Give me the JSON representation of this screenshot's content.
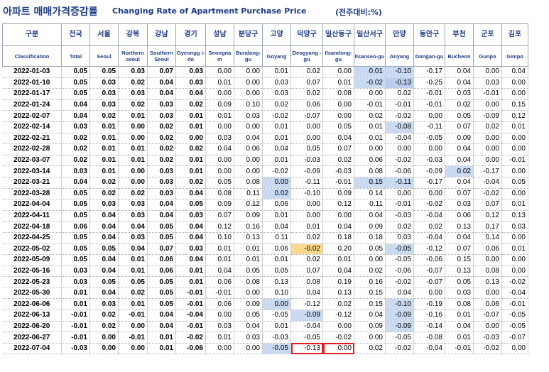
{
  "title": {
    "korean": "아파트 매매가격증감률",
    "english": "Changing Rate of Apartment Purchase Price",
    "unit": "(전주대비:%)"
  },
  "columns": [
    {
      "ko": "구분",
      "en": "Classification"
    },
    {
      "ko": "전국",
      "en": "Total"
    },
    {
      "ko": "서울",
      "en": "Seoul"
    },
    {
      "ko": "강북",
      "en": "Northern seoul"
    },
    {
      "ko": "강남",
      "en": "Southern Seoul"
    },
    {
      "ko": "경기",
      "en": "Gyeongg i-do"
    },
    {
      "ko": "성남",
      "en": "Seongna m"
    },
    {
      "ko": "분당구",
      "en": "Bundang-gu"
    },
    {
      "ko": "고양",
      "en": "Goyang"
    },
    {
      "ko": "덕양구",
      "en": "Deogyang -gu"
    },
    {
      "ko": "일산동구",
      "en": "Ilsandong-gu"
    },
    {
      "ko": "일산서구",
      "en": "Ilsanseo-gu"
    },
    {
      "ko": "안양",
      "en": "Anyang"
    },
    {
      "ko": "동안구",
      "en": "Dongan-gu"
    },
    {
      "ko": "부천",
      "en": "Bucheon"
    },
    {
      "ko": "군포",
      "en": "Gunpo"
    },
    {
      "ko": "김포",
      "en": "Gimpo"
    }
  ],
  "rows": [
    {
      "date": "2022-01-03",
      "values": [
        "0.05",
        "0.05",
        "0.03",
        "0.07",
        "0.03",
        "0.00",
        "0.00",
        "0.01",
        "0.02",
        "0.00",
        "0.01",
        "-0.10",
        "-0.17",
        "0.04",
        "0.00",
        "0.04"
      ]
    },
    {
      "date": "2022-01-10",
      "values": [
        "0.05",
        "0.03",
        "0.02",
        "0.04",
        "0.03",
        "0.01",
        "0.00",
        "0.03",
        "0.07",
        "0.01",
        "-0.02",
        "-0.13",
        "-0.25",
        "0.04",
        "0.03",
        "0.00"
      ]
    },
    {
      "date": "2022-01-17",
      "values": [
        "0.05",
        "0.03",
        "0.03",
        "0.04",
        "0.04",
        "0.00",
        "0.00",
        "0.03",
        "0.02",
        "0.08",
        "0.00",
        "0.02",
        "-0.01",
        "0.03",
        "-0.01",
        "0.00"
      ]
    },
    {
      "date": "2022-01-24",
      "values": [
        "0.04",
        "0.03",
        "0.02",
        "0.03",
        "0.02",
        "0.09",
        "0.10",
        "0.02",
        "0.06",
        "0.00",
        "-0.01",
        "-0.01",
        "-0.01",
        "0.02",
        "0.00",
        "0.15"
      ]
    },
    {
      "date": "2022-02-07",
      "values": [
        "0.04",
        "0.02",
        "0.01",
        "0.03",
        "0.01",
        "0.01",
        "0.03",
        "-0.02",
        "-0.07",
        "0.00",
        "0.02",
        "-0.02",
        "0.00",
        "0.05",
        "-0.09",
        "0.12"
      ]
    },
    {
      "date": "2022-02-14",
      "values": [
        "0.03",
        "0.01",
        "0.00",
        "0.02",
        "0.01",
        "0.00",
        "0.00",
        "0.01",
        "0.00",
        "0.05",
        "0.01",
        "-0.08",
        "-0.11",
        "0.07",
        "0.02",
        "0.01"
      ]
    },
    {
      "date": "2022-02-21",
      "values": [
        "0.02",
        "0.01",
        "0.00",
        "0.02",
        "0.00",
        "0.03",
        "0.04",
        "0.01",
        "0.00",
        "0.04",
        "0.01",
        "-0.04",
        "-0.05",
        "0.09",
        "0.00",
        "0.00"
      ]
    },
    {
      "date": "2022-02-28",
      "values": [
        "0.02",
        "0.01",
        "0.01",
        "0.02",
        "0.02",
        "0.04",
        "0.06",
        "0.04",
        "0.05",
        "0.07",
        "0.00",
        "0.00",
        "0.00",
        "0.04",
        "0.00",
        "0.00"
      ]
    },
    {
      "date": "2022-03-07",
      "values": [
        "0.02",
        "0.01",
        "0.01",
        "0.02",
        "0.01",
        "0.00",
        "0.00",
        "0.01",
        "-0.03",
        "0.02",
        "0.06",
        "-0.02",
        "-0.03",
        "0.04",
        "0.00",
        "-0.01"
      ]
    },
    {
      "date": "2022-03-14",
      "values": [
        "0.03",
        "0.01",
        "0.00",
        "0.03",
        "0.01",
        "0.00",
        "0.00",
        "-0.02",
        "-0.09",
        "-0.03",
        "0.08",
        "-0.06",
        "-0.09",
        "0.02",
        "-0.17",
        "0.00"
      ]
    },
    {
      "date": "2022-03-21",
      "values": [
        "0.04",
        "0.02",
        "0.00",
        "0.03",
        "0.02",
        "0.05",
        "0.08",
        "0.00",
        "-0.11",
        "-0.01",
        "0.15",
        "-0.11",
        "-0.17",
        "0.04",
        "-0.04",
        "0.05"
      ]
    },
    {
      "date": "2022-03-28",
      "values": [
        "0.05",
        "0.02",
        "0.02",
        "0.03",
        "0.04",
        "0.08",
        "0.11",
        "0.02",
        "-0.10",
        "0.09",
        "0.14",
        "0.00",
        "0.00",
        "0.07",
        "-0.02",
        "0.00"
      ]
    },
    {
      "date": "2022-04-04",
      "values": [
        "0.05",
        "0.03",
        "0.03",
        "0.04",
        "0.05",
        "0.09",
        "0.12",
        "0.06",
        "0.00",
        "0.12",
        "0.11",
        "-0.01",
        "-0.02",
        "0.03",
        "0.07",
        "0.01"
      ]
    },
    {
      "date": "2022-04-11",
      "values": [
        "0.05",
        "0.04",
        "0.03",
        "0.04",
        "0.03",
        "0.07",
        "0.09",
        "0.01",
        "0.00",
        "0.00",
        "0.04",
        "-0.03",
        "-0.04",
        "0.06",
        "0.12",
        "0.13"
      ]
    },
    {
      "date": "2022-04-18",
      "values": [
        "0.06",
        "0.04",
        "0.04",
        "0.05",
        "0.04",
        "0.12",
        "0.16",
        "0.04",
        "0.01",
        "0.04",
        "0.09",
        "0.02",
        "0.02",
        "0.13",
        "0.17",
        "0.03"
      ]
    },
    {
      "date": "2022-04-25",
      "values": [
        "0.05",
        "0.04",
        "0.03",
        "0.05",
        "0.04",
        "0.10",
        "0.13",
        "0.11",
        "0.02",
        "0.18",
        "0.18",
        "0.03",
        "-0.04",
        "0.04",
        "0.14",
        "0.00"
      ]
    },
    {
      "date": "2022-05-02",
      "values": [
        "0.05",
        "0.05",
        "0.04",
        "0.07",
        "0.03",
        "0.01",
        "0.01",
        "0.06",
        "-0.02",
        "0.20",
        "0.05",
        "-0.05",
        "-0.12",
        "0.07",
        "0.06",
        "0.01"
      ]
    },
    {
      "date": "2022-05-09",
      "values": [
        "0.05",
        "0.04",
        "0.01",
        "0.06",
        "0.04",
        "0.01",
        "0.01",
        "0.01",
        "0.02",
        "0.01",
        "0.00",
        "-0.05",
        "-0.06",
        "0.15",
        "0.00",
        "0.00"
      ]
    },
    {
      "date": "2022-05-16",
      "values": [
        "0.03",
        "0.04",
        "0.01",
        "0.06",
        "0.01",
        "0.04",
        "0.05",
        "0.05",
        "0.07",
        "0.04",
        "0.02",
        "-0.06",
        "-0.07",
        "0.13",
        "0.08",
        "0.00"
      ]
    },
    {
      "date": "2022-05-23",
      "values": [
        "0.03",
        "0.05",
        "0.05",
        "0.05",
        "0.01",
        "0.06",
        "0.08",
        "0.13",
        "0.08",
        "0.19",
        "0.16",
        "-0.02",
        "-0.07",
        "0.05",
        "0.13",
        "-0.02"
      ]
    },
    {
      "date": "2022-05-30",
      "values": [
        "0.01",
        "0.04",
        "0.02",
        "0.05",
        "-0.01",
        "-0.01",
        "0.00",
        "0.10",
        "0.04",
        "0.13",
        "0.15",
        "0.04",
        "0.00",
        "0.03",
        "0.00",
        "-0.04"
      ]
    },
    {
      "date": "2022-06-06",
      "values": [
        "0.01",
        "0.03",
        "0.01",
        "0.05",
        "-0.01",
        "0.06",
        "0.09",
        "0.00",
        "-0.12",
        "0.02",
        "0.15",
        "-0.10",
        "-0.19",
        "0.08",
        "0.06",
        "-0.01"
      ]
    },
    {
      "date": "2022-06-13",
      "values": [
        "-0.01",
        "0.02",
        "-0.01",
        "0.04",
        "-0.04",
        "0.00",
        "0.05",
        "-0.05",
        "-0.09",
        "-0.12",
        "0.04",
        "-0.09",
        "-0.16",
        "0.01",
        "-0.07",
        "-0.05"
      ]
    },
    {
      "date": "2022-06-20",
      "values": [
        "-0.01",
        "0.02",
        "0.00",
        "0.04",
        "-0.01",
        "0.03",
        "0.04",
        "0.01",
        "-0.04",
        "0.00",
        "0.09",
        "-0.09",
        "-0.14",
        "0.04",
        "0.00",
        "-0.05"
      ]
    },
    {
      "date": "2022-06-27",
      "values": [
        "-0.01",
        "0.00",
        "-0.01",
        "0.01",
        "-0.02",
        "0.01",
        "0.03",
        "-0.03",
        "-0.05",
        "-0.02",
        "0.00",
        "-0.05",
        "-0.08",
        "0.01",
        "-0.03",
        "-0.07"
      ]
    },
    {
      "date": "2022-07-04",
      "values": [
        "-0.03",
        "0.00",
        "0.00",
        "0.01",
        "-0.06",
        "0.00",
        "0.00",
        "-0.05",
        "-0.13",
        "0.00",
        "0.02",
        "-0.02",
        "-0.04",
        "-0.01",
        "-0.02",
        "0.00"
      ]
    }
  ],
  "highlights": {
    "blue": [
      [
        0,
        11
      ],
      [
        0,
        12
      ],
      [
        1,
        11
      ],
      [
        5,
        12
      ],
      [
        9,
        14
      ],
      [
        10,
        8
      ],
      [
        10,
        11
      ],
      [
        10,
        12
      ],
      [
        11,
        8
      ],
      [
        16,
        12
      ],
      [
        21,
        8
      ],
      [
        21,
        12
      ],
      [
        22,
        9
      ],
      [
        22,
        12
      ],
      [
        23,
        12
      ],
      [
        25,
        8
      ]
    ],
    "blue_dark": [
      [
        1,
        12
      ]
    ],
    "yellow": [
      [
        16,
        9
      ]
    ],
    "boxed": [
      [
        25,
        9
      ],
      [
        25,
        10
      ]
    ]
  },
  "colors": {
    "header_text": "#1f3c8a",
    "highlight_blue": "#c9daf2",
    "highlight_yellow": "#fcd98a",
    "box_red": "#e02020"
  }
}
